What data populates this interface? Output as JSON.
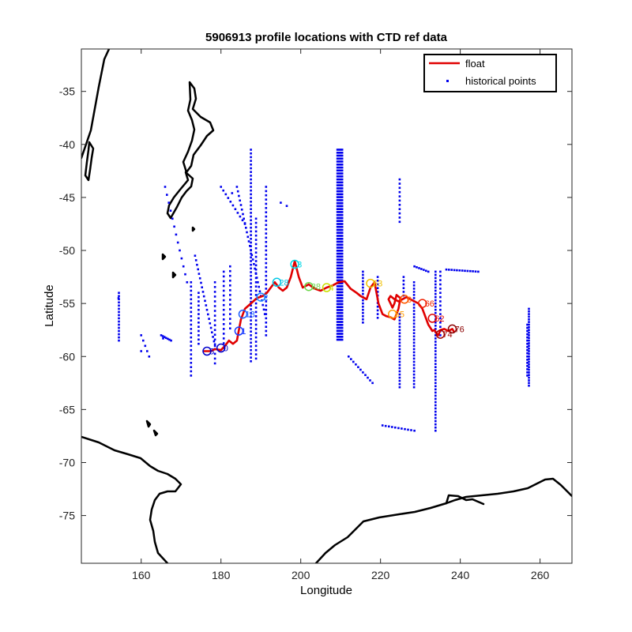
{
  "chart_data": {
    "type": "scatter",
    "title": "5906913 profile locations with CTD ref data",
    "xlabel": "Longitude",
    "ylabel": "Latitude",
    "xlim": [
      145,
      268
    ],
    "ylim": [
      -79.5,
      -31
    ],
    "xticks": [
      160,
      180,
      200,
      220,
      240,
      260
    ],
    "yticks": [
      -35,
      -40,
      -45,
      -50,
      -55,
      -60,
      -65,
      -70,
      -75
    ],
    "grid": false,
    "legend_position": "top-right",
    "colors": {
      "float": "#e00000",
      "historical": "#0000ee",
      "coast": "#000000"
    },
    "series": [
      {
        "name": "float",
        "style": "line",
        "x": [
          175.5,
          176.5,
          177.5,
          178.5,
          180,
          181,
          182,
          183,
          184,
          184.5,
          185,
          185.5,
          186,
          187.5,
          189,
          190.5,
          191.5,
          192.5,
          193.5,
          194.5,
          195.5,
          196.5,
          197.5,
          198.5,
          199.5,
          200.5,
          202,
          203.5,
          205,
          206.5,
          208,
          209.5,
          211,
          212.5,
          214,
          215,
          216.5,
          217.5,
          218.5,
          219.5,
          220.5,
          221.5,
          222.5,
          223.5,
          224.5,
          225,
          224,
          223.5,
          223,
          222.5,
          222,
          222.5,
          223.5,
          224.5,
          225.5,
          226.5,
          227.5,
          228.5,
          229.5,
          230.5,
          231,
          231.5,
          232,
          232.5,
          233,
          233.5,
          234,
          234.5,
          235,
          236,
          237,
          238,
          238.5
        ],
        "y": [
          -59.5,
          -59.5,
          -59.5,
          -59.3,
          -59.4,
          -59,
          -58.5,
          -58.8,
          -58.5,
          -57.5,
          -56.5,
          -56,
          -55.5,
          -55,
          -54.5,
          -54.3,
          -54,
          -53.5,
          -53,
          -53.5,
          -53.8,
          -53.5,
          -52.5,
          -51,
          -52.5,
          -53.5,
          -53.2,
          -53.6,
          -53.8,
          -53.5,
          -53.3,
          -53,
          -52.9,
          -53.6,
          -54,
          -54.3,
          -54.6,
          -53.5,
          -53,
          -55,
          -56,
          -56.2,
          -56.3,
          -56.5,
          -55.5,
          -54.5,
          -54.2,
          -55,
          -55.4,
          -55,
          -54.6,
          -54.3,
          -54.6,
          -54.8,
          -54.6,
          -54.4,
          -54.6,
          -54.8,
          -55,
          -55.5,
          -56,
          -56.5,
          -57,
          -57.3,
          -57.6,
          -57.5,
          -57.8,
          -58,
          -57.5,
          -57.4,
          -57.6,
          -57.4,
          -57.7
        ]
      },
      {
        "name": "historical points",
        "style": "points"
      }
    ],
    "profile_markers": [
      {
        "label": "5",
        "lon": 176.5,
        "lat": -59.5,
        "color": "#0000cc"
      },
      {
        "label": "0",
        "lon": 180.0,
        "lat": -59.2,
        "color": "#0000cc"
      },
      {
        "label": "1",
        "lon": 184.5,
        "lat": -57.6,
        "color": "#1a3cff"
      },
      {
        "label": "18",
        "lon": 185.5,
        "lat": -56.0,
        "color": "#1a5cff"
      },
      {
        "label": "2",
        "lon": 190.0,
        "lat": -54.4,
        "color": "#1a8cff"
      },
      {
        "label": "28",
        "lon": 194.0,
        "lat": -53.0,
        "color": "#00c8e6"
      },
      {
        "label": "3",
        "lon": 198.5,
        "lat": -51.3,
        "color": "#00d8e6"
      },
      {
        "label": "38",
        "lon": 202.0,
        "lat": -53.4,
        "color": "#6cd64a"
      },
      {
        "label": "4",
        "lon": 206.5,
        "lat": -53.5,
        "color": "#c8e000"
      },
      {
        "label": "53",
        "lon": 217.5,
        "lat": -53.1,
        "color": "#f0c000"
      },
      {
        "label": "55",
        "lon": 223.0,
        "lat": -56.0,
        "color": "#ff9a00"
      },
      {
        "label": "6",
        "lon": 226.0,
        "lat": -54.6,
        "color": "#ff5a00"
      },
      {
        "label": "66",
        "lon": 230.5,
        "lat": -55.0,
        "color": "#f02000"
      },
      {
        "label": "62",
        "lon": 233.0,
        "lat": -56.4,
        "color": "#e00000"
      },
      {
        "label": "74",
        "lon": 235.0,
        "lat": -57.9,
        "color": "#a00000"
      },
      {
        "label": "76",
        "lon": 238.0,
        "lat": -57.4,
        "color": "#8b0000"
      }
    ]
  }
}
